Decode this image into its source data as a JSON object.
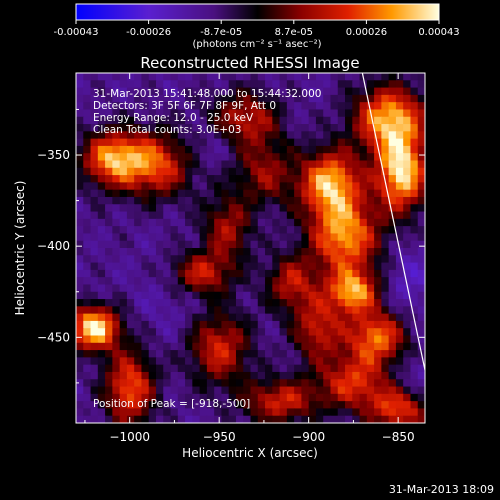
{
  "colorbar": {
    "tick_labels": [
      "-0.00043",
      "-0.00026",
      "-8.7e-05",
      "8.7e-05",
      "0.00026",
      "0.00043"
    ],
    "units": "(photons cm⁻² s⁻¹ asec⁻²)"
  },
  "info": {
    "time_range": "31-Mar-2013 15:41:48.000 to 15:44:32.000",
    "detectors": "Detectors: 3F 5F 6F 7F 8F 9F, Att 0",
    "energy": "Energy Range: 12.0 - 25.0 keV",
    "clean": "Clean    Total counts: 3.0E+03",
    "peak": "Position of Peak = [-918,-500]"
  },
  "footer": {
    "timestamp": "31-Mar-2013 18:09"
  },
  "colors": {
    "background": "#000000",
    "foreground": "#ffffff"
  },
  "chart_data": {
    "type": "heatmap",
    "title": "Reconstructed RHESSI Image",
    "xlabel": "Heliocentric X (arcsec)",
    "ylabel": "Heliocentric Y (arcsec)",
    "xlim": [
      -1030,
      -835
    ],
    "ylim": [
      -497,
      -305
    ],
    "x_ticks": [
      -1000,
      -950,
      -900,
      -850
    ],
    "y_ticks": [
      -350,
      -400,
      -450
    ],
    "x_tick_labels": [
      "−1000",
      "−950",
      "−900",
      "−850"
    ],
    "y_tick_labels": [
      "−350",
      "−400",
      "−450"
    ],
    "colorbar_range": [
      -0.00043,
      0.00043
    ],
    "limb_line": {
      "x": [
        -870,
        -835
      ],
      "y": [
        -305,
        -468
      ]
    },
    "peak": [
      -918,
      -500
    ],
    "bright_regions": [
      {
        "x": -1020,
        "y": -445,
        "value": 0.00043
      },
      {
        "x": -1010,
        "y": -352,
        "value": 0.0003
      },
      {
        "x": -985,
        "y": -355,
        "value": 0.00024
      },
      {
        "x": -1000,
        "y": -478,
        "value": 0.00026
      },
      {
        "x": -960,
        "y": -415,
        "value": 0.00018
      },
      {
        "x": -935,
        "y": -330,
        "value": 0.00016
      },
      {
        "x": -945,
        "y": -390,
        "value": 0.00014
      },
      {
        "x": -950,
        "y": -455,
        "value": 0.0002
      },
      {
        "x": -915,
        "y": -485,
        "value": 0.00018
      },
      {
        "x": -910,
        "y": -420,
        "value": 0.00015
      },
      {
        "x": -888,
        "y": -365,
        "value": 0.00034
      },
      {
        "x": -880,
        "y": -395,
        "value": 0.00032
      },
      {
        "x": -875,
        "y": -425,
        "value": 0.0003
      },
      {
        "x": -862,
        "y": -450,
        "value": 0.00028
      },
      {
        "x": -855,
        "y": -330,
        "value": 0.00034
      },
      {
        "x": -848,
        "y": -360,
        "value": 0.0004
      },
      {
        "x": -850,
        "y": -490,
        "value": 0.00022
      },
      {
        "x": -875,
        "y": -475,
        "value": 0.0002
      },
      {
        "x": -895,
        "y": -445,
        "value": 0.00017
      },
      {
        "x": -925,
        "y": -360,
        "value": 0.00012
      }
    ],
    "dark_regions": [
      {
        "x": -955,
        "y": -345,
        "value": -0.0002
      },
      {
        "x": -930,
        "y": -380,
        "value": -0.00018
      },
      {
        "x": -915,
        "y": -335,
        "value": -0.00016
      },
      {
        "x": -975,
        "y": -430,
        "value": -0.00018
      },
      {
        "x": -950,
        "y": -440,
        "value": -0.00016
      },
      {
        "x": -905,
        "y": -400,
        "value": -0.00014
      },
      {
        "x": -1020,
        "y": -390,
        "value": -0.00012
      },
      {
        "x": -845,
        "y": -420,
        "value": -0.00022
      },
      {
        "x": -840,
        "y": -470,
        "value": -0.0002
      },
      {
        "x": -865,
        "y": -495,
        "value": -0.00014
      },
      {
        "x": -930,
        "y": -490,
        "value": -0.0001
      }
    ]
  }
}
